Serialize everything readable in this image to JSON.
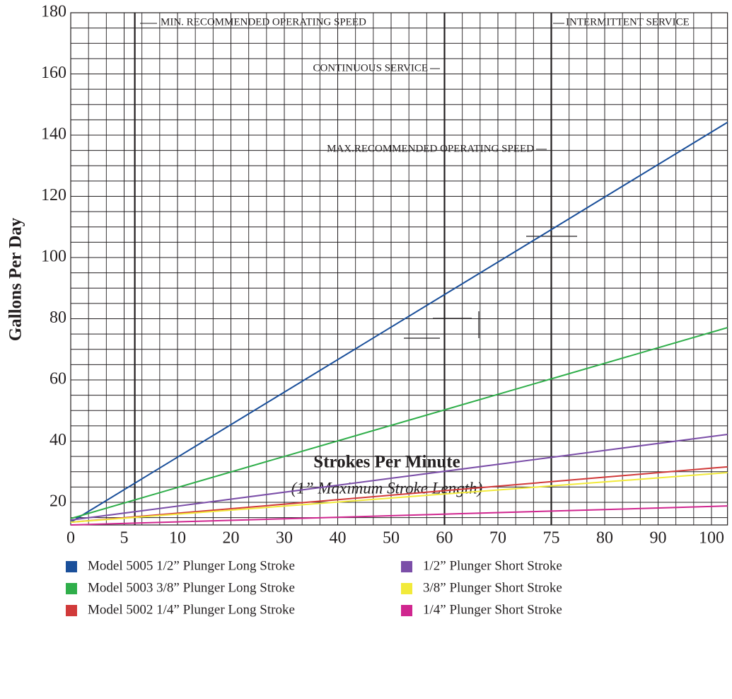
{
  "chart_data": {
    "type": "line",
    "x_label": "Strokes Per Minute",
    "subtitle": "(1” Maximum Stroke Length)",
    "y_label": "Gallons Per Day",
    "xlim": [
      0,
      103
    ],
    "ylim": [
      12.6,
      180
    ],
    "xticks": [
      0,
      5,
      10,
      20,
      30,
      40,
      50,
      60,
      70,
      75,
      80,
      90,
      100
    ],
    "yticks": [
      20,
      40,
      60,
      80,
      100,
      120,
      140,
      160,
      180
    ],
    "grid": true,
    "minor_grid": true,
    "reference_lines": [
      {
        "x": 6,
        "text": "MIN. RECOMMENDED OPERATING SPEED"
      },
      {
        "x": 60,
        "text": "CONTINUOUS SERVICE"
      },
      {
        "x": 75,
        "text": "MAX.RECOMMENDED OPERATING SPEED"
      },
      {
        "x": 75,
        "text": "INTERMITTENT SERVICE"
      }
    ],
    "series": [
      {
        "name": "Model 5005 1/2” Plunger Long Stroke",
        "color": "#1a4f9a",
        "x": [
          0,
          103
        ],
        "values": [
          13.5,
          144.2
        ]
      },
      {
        "name": "Model 5003 3/8” Plunger Long Stroke",
        "color": "#2fae4a",
        "x": [
          0,
          103
        ],
        "values": [
          14.7,
          77.1
        ]
      },
      {
        "name": "Model 5002 1/4” Plunger Long Stroke",
        "color": "#d13a3a",
        "x": [
          0,
          103
        ],
        "values": [
          13.5,
          31.6
        ]
      },
      {
        "name": "1/2” Plunger Short Stroke",
        "color": "#7b4ea8",
        "x": [
          0,
          103
        ],
        "values": [
          14.2,
          42.2
        ]
      },
      {
        "name": "3/8” Plunger Short Stroke",
        "color": "#f2ea3a",
        "x": [
          0,
          103
        ],
        "values": [
          13.5,
          29.7
        ]
      },
      {
        "name": "1/4” Plunger Short Stroke",
        "color": "#d0268f",
        "x": [
          0,
          103
        ],
        "values": [
          12.6,
          18.8
        ]
      }
    ]
  }
}
